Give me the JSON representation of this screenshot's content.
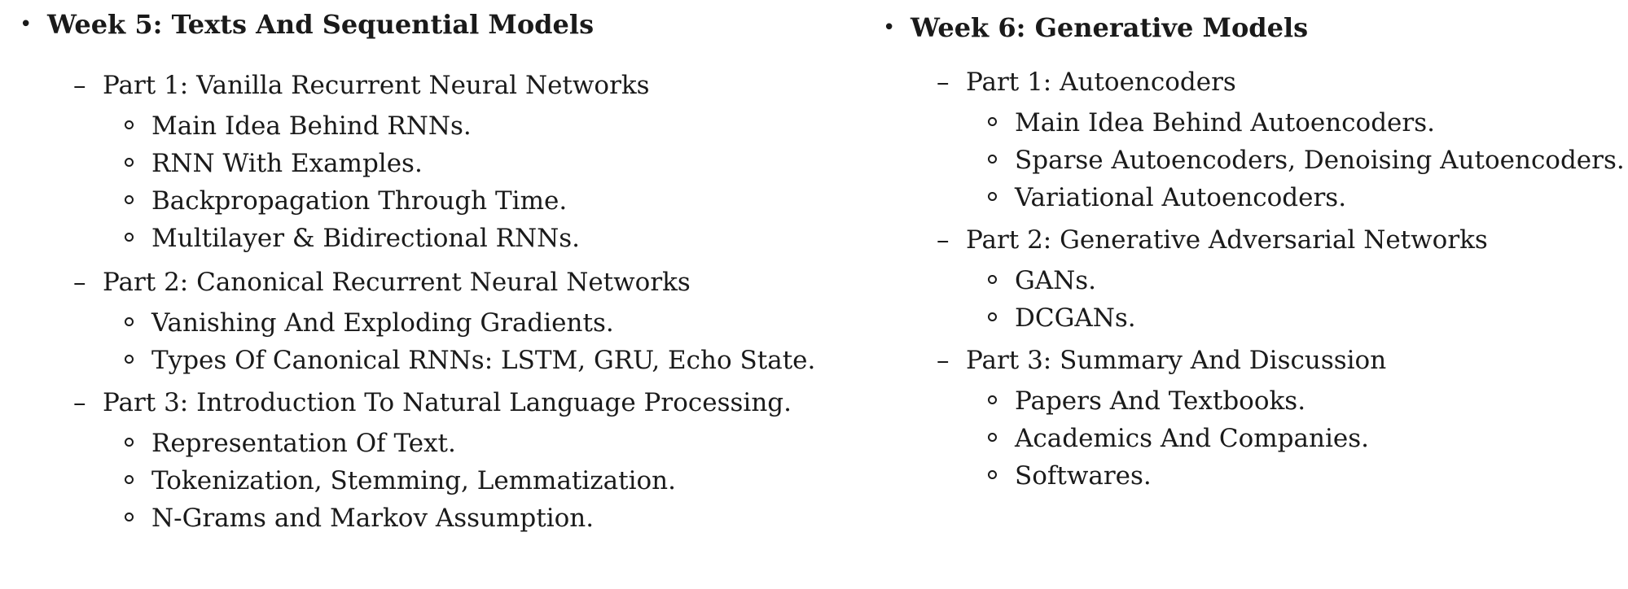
{
  "week5": {
    "bullet": "•",
    "title": "Week 5: Texts And Sequential Models",
    "parts": [
      {
        "dash": "–",
        "title": "Part 1: Vanilla Recurrent Neural Networks",
        "topics": [
          "Main Idea Behind RNNs.",
          "RNN With Examples.",
          "Backpropagation Through Time.",
          "Multilayer & Bidirectional RNNs."
        ]
      },
      {
        "dash": "–",
        "title": "Part 2: Canonical Recurrent Neural Networks",
        "topics": [
          "Vanishing And Exploding Gradients.",
          "Types Of Canonical RNNs: LSTM, GRU, Echo State."
        ]
      },
      {
        "dash": "–",
        "title": "Part 3: Introduction To Natural Language Processing.",
        "topics": [
          "Representation Of Text.",
          "Tokenization, Stemming, Lemmatization.",
          "N-Grams and Markov Assumption."
        ]
      }
    ]
  },
  "week6": {
    "bullet": "•",
    "title": "Week 6: Generative Models",
    "parts": [
      {
        "dash": "–",
        "title": "Part 1: Autoencoders",
        "topics": [
          "Main Idea Behind Autoencoders.",
          "Sparse Autoencoders, Denoising Autoencoders.",
          "Variational Autoencoders."
        ]
      },
      {
        "dash": "–",
        "title": "Part 2: Generative Adversarial Networks",
        "topics": [
          "GANs.",
          "DCGANs."
        ]
      },
      {
        "dash": "–",
        "title": "Part 3: Summary And Discussion",
        "topics": [
          "Papers And Textbooks.",
          "Academics And Companies.",
          "Softwares."
        ]
      }
    ]
  }
}
